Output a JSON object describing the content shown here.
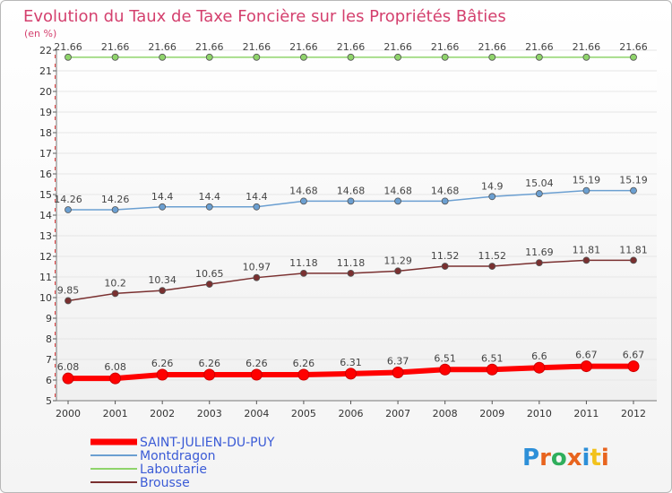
{
  "chart_data": {
    "type": "line",
    "title": "Evolution du Taux de Taxe Foncière sur les Propriétés Bâties",
    "unit_label": "(en %)",
    "xlabel": "",
    "ylabel": "(en %)",
    "ylim": [
      5,
      22
    ],
    "y_ticks": [
      5,
      6,
      7,
      8,
      9,
      10,
      11,
      12,
      13,
      14,
      15,
      16,
      17,
      18,
      19,
      20,
      21,
      22
    ],
    "categories": [
      "2000",
      "2001",
      "2002",
      "2003",
      "2004",
      "2005",
      "2006",
      "2007",
      "2008",
      "2009",
      "2010",
      "2011",
      "2012"
    ],
    "series": [
      {
        "name": "SAINT-JULIEN-DU-PUY",
        "color": "#ff0000",
        "values": [
          6.08,
          6.08,
          6.26,
          6.26,
          6.26,
          6.26,
          6.31,
          6.37,
          6.51,
          6.51,
          6.6,
          6.67,
          6.67
        ],
        "labels": [
          "6.08",
          "6.08",
          "6.26",
          "6.26",
          "6.26",
          "6.26",
          "6.31",
          "6.37",
          "6.51",
          "6.51",
          "6.6",
          "6.67",
          "6.67"
        ]
      },
      {
        "name": "Montdragon",
        "color": "#6b9fd1",
        "values": [
          14.26,
          14.26,
          14.4,
          14.4,
          14.4,
          14.68,
          14.68,
          14.68,
          14.68,
          14.9,
          15.04,
          15.19,
          15.19
        ],
        "labels": [
          "14.26",
          "14.26",
          "14.4",
          "14.4",
          "14.4",
          "14.68",
          "14.68",
          "14.68",
          "14.68",
          "14.9",
          "15.04",
          "15.19",
          "15.19"
        ]
      },
      {
        "name": "Laboutarie",
        "color": "#8fd46b",
        "values": [
          21.66,
          21.66,
          21.66,
          21.66,
          21.66,
          21.66,
          21.66,
          21.66,
          21.66,
          21.66,
          21.66,
          21.66,
          21.66
        ],
        "labels": [
          "21.66",
          "21.66",
          "21.66",
          "21.66",
          "21.66",
          "21.66",
          "21.66",
          "21.66",
          "21.66",
          "21.66",
          "21.66",
          "21.66",
          "21.66"
        ]
      },
      {
        "name": "Brousse",
        "color": "#7a3030",
        "values": [
          9.85,
          10.2,
          10.34,
          10.65,
          10.97,
          11.18,
          11.18,
          11.29,
          11.52,
          11.52,
          11.69,
          11.81,
          11.81
        ],
        "labels": [
          "9.85",
          "10.2",
          "10.34",
          "10.65",
          "10.97",
          "11.18",
          "11.18",
          "11.29",
          "11.52",
          "11.52",
          "11.69",
          "11.81",
          "11.81"
        ]
      }
    ],
    "legend": {
      "placement": "bottom-left",
      "items": [
        "SAINT-JULIEN-DU-PUY",
        "Montdragon",
        "Laboutarie",
        "Brousse"
      ]
    }
  },
  "logo": {
    "text": "Proxiti"
  }
}
